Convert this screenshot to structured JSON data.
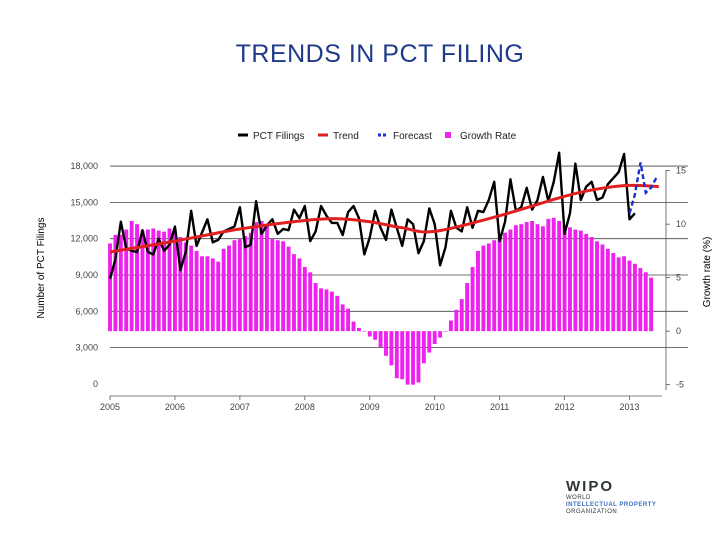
{
  "page": {
    "title": "TRENDS IN PCT FILING"
  },
  "logo": {
    "name": "WIPO",
    "lines": [
      "WORLD",
      "INTELLECTUAL PROPERTY",
      "ORGANIZATION"
    ]
  },
  "colors": {
    "filings": "#000000",
    "trend": "#e02020",
    "forecast": "#1a2fd0",
    "growth": "#ee22ee",
    "title": "#1f3a8a"
  },
  "chart_data": {
    "type": "line",
    "xlabel": "",
    "ylabel": "Number of PCT Filings",
    "y2label": "Growth rate (%)",
    "xlim": [
      2005,
      2013.5
    ],
    "ylim": [
      -500,
      18500
    ],
    "y2lim": [
      -5.5,
      16
    ],
    "xticks": [
      "2005",
      "2006",
      "2007",
      "2008",
      "2009",
      "2010",
      "2011",
      "2012",
      "2013"
    ],
    "yticks": [
      "0",
      "3,000",
      "6,000",
      "9,000",
      "12,000",
      "15,000",
      "18,000"
    ],
    "ytick_values": [
      0,
      3000,
      6000,
      9000,
      12000,
      15000,
      18000
    ],
    "y2ticks": [
      "-5",
      "0",
      "5",
      "10",
      "15"
    ],
    "y2tick_values": [
      -5,
      0,
      5,
      10,
      15
    ],
    "legend": [
      {
        "name": "PCT Filings",
        "style": "line",
        "color": "#000000"
      },
      {
        "name": "Trend",
        "style": "line",
        "color": "#e02020"
      },
      {
        "name": "Forecast",
        "style": "dashed",
        "color": "#1a2fd0"
      },
      {
        "name": "Growth Rate",
        "style": "bar",
        "color": "#ee22ee"
      }
    ],
    "legend_position": "top-center",
    "series": [
      {
        "name": "PCT Filings",
        "x_start": 2005.0,
        "x_step": 0.08333,
        "values": [
          8700,
          10300,
          13400,
          11200,
          11000,
          10900,
          12700,
          10900,
          10700,
          12000,
          11000,
          11500,
          13000,
          9400,
          10900,
          14300,
          11400,
          12500,
          13600,
          11700,
          11900,
          12600,
          12800,
          13000,
          14600,
          11300,
          11500,
          15100,
          12400,
          13100,
          13600,
          12400,
          12800,
          12700,
          14400,
          13700,
          14700,
          11800,
          12600,
          14700,
          13900,
          13300,
          13300,
          12300,
          14200,
          14700,
          13700,
          10700,
          12100,
          14300,
          12900,
          11900,
          14400,
          12900,
          11400,
          13600,
          13200,
          10800,
          11800,
          14500,
          13200,
          9800,
          11300,
          14300,
          12900,
          12600,
          14600,
          12900,
          14300,
          14200,
          15200,
          16700,
          11800,
          13400,
          16900,
          14300,
          14600,
          16200,
          14400,
          15200,
          17100,
          15100,
          16700,
          19100,
          12400,
          14100,
          18200,
          15200,
          16300,
          16700,
          15200,
          15400,
          16500,
          17000,
          17500,
          19000,
          13600,
          14100
        ]
      },
      {
        "name": "Trend",
        "x": [
          2005.0,
          2006.0,
          2007.0,
          2008.0,
          2008.5,
          2009.0,
          2009.5,
          2010.0,
          2011.0,
          2012.0,
          2012.5,
          2013.0,
          2013.45
        ],
        "values": [
          10900,
          11800,
          12800,
          13500,
          13650,
          13400,
          12900,
          12600,
          13900,
          15500,
          16100,
          16400,
          16300
        ]
      },
      {
        "name": "Forecast",
        "x": [
          2013.0,
          2013.08,
          2013.17,
          2013.25,
          2013.33,
          2013.42
        ],
        "values": [
          14100,
          15600,
          18300,
          15800,
          16200,
          17100
        ]
      },
      {
        "name": "Growth Rate",
        "axis": "right",
        "x_start": 2005.0,
        "x_step": 0.08333,
        "values": [
          8.2,
          9.0,
          9.0,
          9.5,
          10.3,
          10.0,
          9.4,
          9.5,
          9.6,
          9.4,
          9.3,
          9.6,
          9.4,
          8.8,
          8.3,
          8.0,
          7.5,
          7.0,
          7.0,
          6.8,
          6.5,
          7.7,
          8.0,
          8.5,
          8.6,
          8.9,
          9.2,
          10.2,
          10.3,
          9.8,
          8.6,
          8.5,
          8.4,
          7.9,
          7.2,
          6.8,
          6.0,
          5.5,
          4.5,
          4.0,
          3.9,
          3.7,
          3.3,
          2.5,
          2.1,
          0.9,
          0.3,
          0,
          -0.5,
          -0.8,
          -1.5,
          -2.3,
          -3.2,
          -4.4,
          -4.5,
          -5.0,
          -5.0,
          -4.8,
          -3.0,
          -2.0,
          -1.2,
          -0.6,
          0,
          1.0,
          2.0,
          3.0,
          4.5,
          6.0,
          7.5,
          8.0,
          8.2,
          8.5,
          8.8,
          9.2,
          9.5,
          9.9,
          10.0,
          10.2,
          10.3,
          10.0,
          9.8,
          10.5,
          10.6,
          10.3,
          9.9,
          9.7,
          9.5,
          9.4,
          9.1,
          8.8,
          8.4,
          8.1,
          7.7,
          7.3,
          6.9,
          7.0,
          6.6,
          6.3,
          5.9,
          5.5,
          5.0
        ]
      }
    ]
  }
}
